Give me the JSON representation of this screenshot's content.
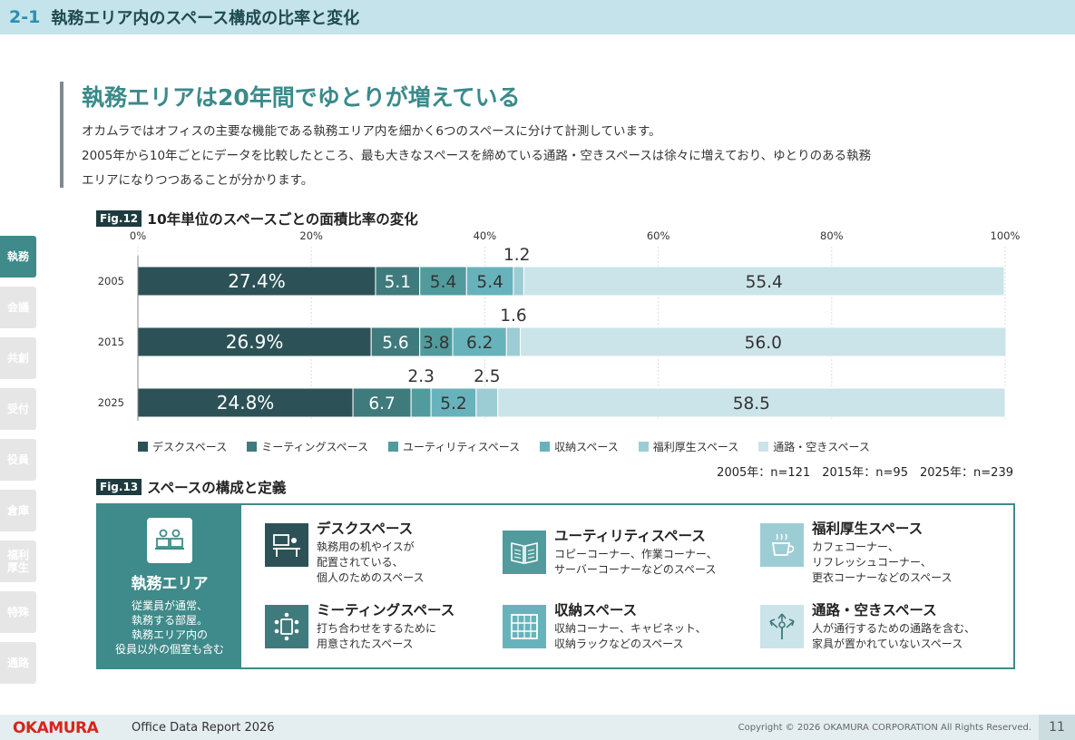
{
  "header": {
    "section_number": "2-1",
    "section_title": "執務エリア内のスペース構成の比率と変化"
  },
  "sidebar": {
    "tabs": [
      {
        "label": "執務",
        "active": true
      },
      {
        "label": "会議",
        "active": false
      },
      {
        "label": "共創",
        "active": false
      },
      {
        "label": "受付",
        "active": false
      },
      {
        "label": "役員",
        "active": false
      },
      {
        "label": "倉庫",
        "active": false
      },
      {
        "label": "福利厚生",
        "active": false
      },
      {
        "label": "特殊",
        "active": false
      },
      {
        "label": "通路",
        "active": false
      }
    ]
  },
  "main": {
    "heading": "執務エリアは20年間でゆとりが増えている",
    "intro": [
      "オカムラではオフィスの主要な機能である執務エリア内を細かく6つのスペースに分けて計測しています。",
      "2005年から10年ごとにデータを比較したところ、最も大きなスペースを締めている通路・空きスペースは徐々に増えており、ゆとりのある執務",
      "エリアになりつつあることが分かります。"
    ]
  },
  "fig12": {
    "tag": "Fig.12",
    "title": "10年単位のスペースごとの面積比率の変化"
  },
  "chart_data": {
    "type": "bar",
    "orientation": "horizontal",
    "stacked": true,
    "title": "10年単位のスペースごとの面積比率の変化",
    "categories": [
      "2005",
      "2015",
      "2025"
    ],
    "xlim": [
      0,
      100
    ],
    "xticks": [
      "0%",
      "20%",
      "40%",
      "60%",
      "80%",
      "100%"
    ],
    "series": [
      {
        "name": "デスクスペース",
        "color": "#2c5257",
        "values": [
          27.4,
          26.9,
          24.8
        ],
        "labels": [
          "27.4%",
          "26.9%",
          "24.8%"
        ]
      },
      {
        "name": "ミーティングスペース",
        "color": "#3f7a7c",
        "values": [
          5.1,
          5.6,
          6.7
        ],
        "labels": [
          "5.1",
          "5.6",
          "6.7"
        ]
      },
      {
        "name": "ユーティリティスペース",
        "color": "#519b9d",
        "values": [
          5.4,
          3.8,
          2.3
        ],
        "labels": [
          "5.4",
          "3.8",
          "2.3"
        ]
      },
      {
        "name": "収納スペース",
        "color": "#68b3bb",
        "values": [
          5.4,
          6.2,
          5.2
        ],
        "labels": [
          "5.4",
          "6.2",
          "5.2"
        ]
      },
      {
        "name": "福利厚生スペース",
        "color": "#9dcdd4",
        "values": [
          1.2,
          1.6,
          2.5
        ],
        "labels": [
          "1.2",
          "1.6",
          "2.5"
        ]
      },
      {
        "name": "通路・空きスペース",
        "color": "#cbe4e9",
        "values": [
          55.4,
          56.0,
          58.5
        ],
        "labels": [
          "55.4",
          "56.0",
          "58.5"
        ]
      }
    ]
  },
  "sample_note": "2005年：n=121　2015年：n=95　2025年：n=239",
  "fig13": {
    "tag": "Fig.13",
    "title": "スペースの構成と定義"
  },
  "definitions": {
    "main": {
      "title": "執務エリア",
      "desc": "従業員が通常、\n執務する部屋。\n執務エリア内の\n役員以外の個室も含む",
      "icon": "workspace-icon"
    },
    "items": [
      {
        "title": "デスクスペース",
        "desc": "執務用の机やイスが\n配置されている、\n個人のためのスペース",
        "icon": "desk-icon",
        "icon_bg": "#2c5257"
      },
      {
        "title": "ユーティリティスペース",
        "desc": "コピーコーナー、作業コーナー、\nサーバーコーナーなどのスペース",
        "icon": "utility-icon",
        "icon_bg": "#519b9d"
      },
      {
        "title": "福利厚生スペース",
        "desc": "カフェコーナー、\nリフレッシュコーナー、\n更衣コーナーなどのスペース",
        "icon": "cafe-icon",
        "icon_bg": "#9dcdd4"
      },
      {
        "title": "ミーティングスペース",
        "desc": "打ち合わせをするために\n用意されたスペース",
        "icon": "meeting-icon",
        "icon_bg": "#3f7a7c"
      },
      {
        "title": "収納スペース",
        "desc": "収納コーナー、キャビネット、\n収納ラックなどのスペース",
        "icon": "storage-icon",
        "icon_bg": "#68b3bb"
      },
      {
        "title": "通路・空きスペース",
        "desc": "人が通行するための通路を含む、\n家具が置かれていないスペース",
        "icon": "passage-icon",
        "icon_bg": "#cbe4e9"
      }
    ]
  },
  "footer": {
    "logo": "OKAMURA",
    "report": "Office Data Report 2026",
    "copyright": "Copyright © 2026 OKAMURA CORPORATION All Rights Reserved.",
    "page": "11"
  }
}
